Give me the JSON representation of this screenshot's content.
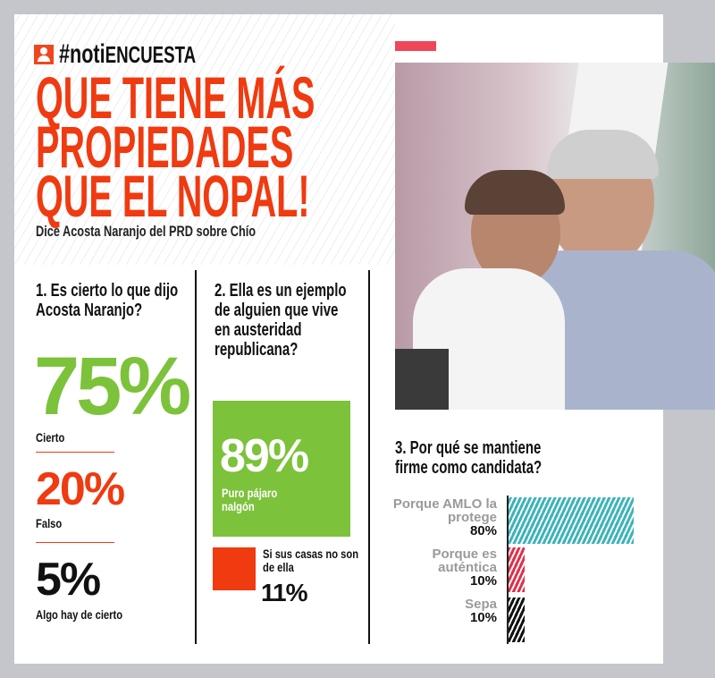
{
  "brand": {
    "icon": "user-icon",
    "prefix": "#noti",
    "suffix": "ENCUESTA"
  },
  "headline": [
    "QUE TIENE MÁS",
    "PROPIEDADES",
    "QUE EL NOPAL!"
  ],
  "subtitle": "Dice Acosta Naranjo del PRD sobre Chío",
  "colors": {
    "accent": "#f03a10",
    "green": "#7cc23a",
    "teal": "#3cb4b9",
    "crimson": "#e0304a",
    "black": "#111111"
  },
  "q1": {
    "question": "1. Es cierto lo que dijo Acosta Naranjo?",
    "answers": [
      {
        "value": "75%",
        "label": "Cierto"
      },
      {
        "value": "20%",
        "label": "Falso"
      },
      {
        "value": "5%",
        "label": "Algo hay de cierto"
      }
    ]
  },
  "q2": {
    "question": "2. Ella es un ejemplo de alguien que  vive en austeridad republicana?",
    "answers": [
      {
        "value": "89%",
        "label": "Puro pájaro nalgón"
      },
      {
        "value": "11%",
        "label": "Si sus casas no son de ella"
      }
    ]
  },
  "q3": {
    "question": "3. Por qué se mantiene firme como candidata?"
  },
  "chart_data": {
    "type": "bar",
    "orientation": "horizontal",
    "title": "3. Por qué se mantiene firme como candidata?",
    "categories": [
      "Porque AMLO la protege",
      "Porque es auténtica",
      "Sepa"
    ],
    "values": [
      80,
      10,
      10
    ],
    "labels": [
      "80%",
      "10%",
      "10%"
    ],
    "colors": [
      "#3cb4b9",
      "#e0304a",
      "#111111"
    ],
    "xlim": [
      0,
      80
    ],
    "grid": false
  }
}
